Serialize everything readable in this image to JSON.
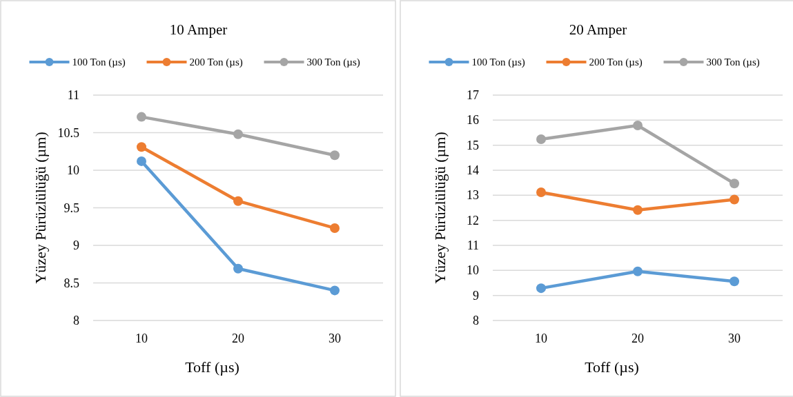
{
  "chart_data": [
    {
      "type": "line",
      "title": "10 Amper",
      "xlabel": "Toff (µs)",
      "ylabel": "Yüzey Pürüzlülüğü  (µm)",
      "categories": [
        "10",
        "20",
        "30"
      ],
      "ylim": [
        8,
        11
      ],
      "yticks": [
        8,
        8.5,
        9,
        9.5,
        10,
        10.5,
        11
      ],
      "grid": "y",
      "legend": "top",
      "marker": "circle",
      "line_style": "solid",
      "series": [
        {
          "name": "100 Ton (µs)",
          "color": "#5b9bd5",
          "values": [
            10.12,
            8.69,
            8.4
          ]
        },
        {
          "name": "200 Ton (µs)",
          "color": "#ed7d31",
          "values": [
            10.31,
            9.59,
            9.23
          ]
        },
        {
          "name": "300 Ton (µs)",
          "color": "#a5a5a5",
          "values": [
            10.71,
            10.48,
            10.2
          ]
        }
      ]
    },
    {
      "type": "line",
      "title": "20 Amper",
      "xlabel": "Toff (µs)",
      "ylabel": "Yüzey Pürüzlülüğü  (µm)",
      "categories": [
        "10",
        "20",
        "30"
      ],
      "ylim": [
        8,
        17
      ],
      "yticks": [
        8,
        9,
        10,
        11,
        12,
        13,
        14,
        15,
        16,
        17
      ],
      "grid": "y",
      "legend": "top",
      "marker": "circle",
      "line_style": "solid",
      "series": [
        {
          "name": "100 Ton (µs)",
          "color": "#5b9bd5",
          "values": [
            9.29,
            9.96,
            9.56
          ]
        },
        {
          "name": "200 Ton (µs)",
          "color": "#ed7d31",
          "values": [
            13.12,
            12.41,
            12.83
          ]
        },
        {
          "name": "300 Ton (µs)",
          "color": "#a5a5a5",
          "values": [
            15.24,
            15.79,
            13.47
          ]
        }
      ]
    }
  ]
}
